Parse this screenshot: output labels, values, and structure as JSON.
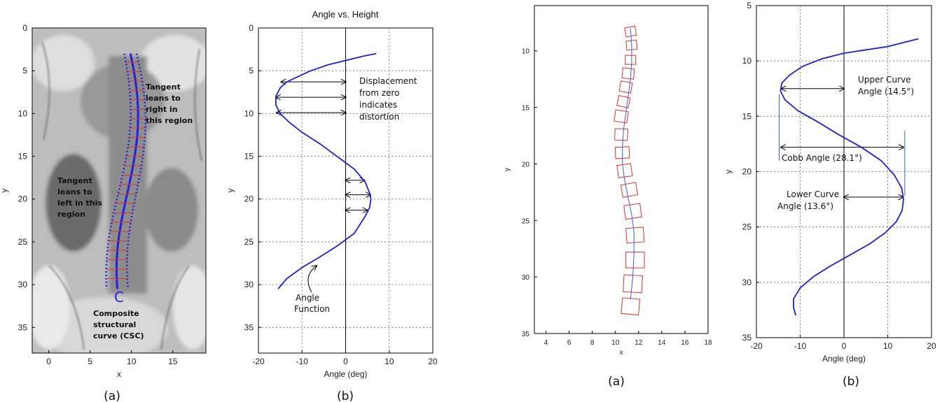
{
  "colors": {
    "curve": "#1f1fd6",
    "boxes": "#e03030",
    "spine_line": "#3a5fd9",
    "axis": "#000000"
  },
  "chart_data": [
    {
      "id": "panel-1a",
      "type": "image",
      "caption": "(a)",
      "xlabel": "x",
      "ylabel": "y",
      "xlim": [
        -2,
        19
      ],
      "ylim": [
        38,
        0
      ],
      "xticks": [
        "0",
        "5",
        "10",
        "15"
      ],
      "yticks": [
        "0",
        "5",
        "10",
        "15",
        "20",
        "25",
        "30",
        "35"
      ],
      "annotations": {
        "right": [
          "Tangent",
          "leans to",
          "right in",
          "this region"
        ],
        "left": [
          "Tangent",
          "leans to",
          "left in this",
          "region"
        ],
        "bottom": [
          "Composite",
          "structural",
          "curve (CSC)"
        ],
        "letter": "C"
      }
    },
    {
      "id": "panel-1b",
      "type": "line",
      "title": "Angle vs. Height",
      "caption": "(b)",
      "xlabel": "Angle (deg)",
      "ylabel": "y",
      "xlim": [
        -20,
        20
      ],
      "ylim": [
        38,
        0
      ],
      "xticks": [
        "-20",
        "-10",
        "0",
        "10",
        "20"
      ],
      "yticks": [
        "0",
        "5",
        "10",
        "15",
        "20",
        "25",
        "30",
        "35"
      ],
      "grid": true,
      "series": [
        {
          "x": [
            7,
            4,
            0,
            -4,
            -8,
            -11,
            -13.5,
            -15,
            -16,
            -16,
            -15,
            -13,
            -10,
            -6,
            -2,
            2,
            4.5,
            5.5,
            5.8,
            5.5,
            4.5,
            2,
            -2,
            -6,
            -10,
            -13.5,
            -15.5
          ],
          "y": [
            3,
            3.3,
            3.8,
            4.3,
            5,
            5.7,
            6.3,
            7,
            8,
            9,
            10,
            11,
            12.2,
            13.5,
            15,
            16.5,
            18,
            19.3,
            20,
            21,
            22,
            24,
            25.5,
            26.8,
            28,
            29.3,
            30.5
          ]
        }
      ],
      "annotations": {
        "displacement": [
          "Displacement",
          "from zero",
          "indicates",
          "distortion"
        ],
        "function": [
          "Angle",
          "Function"
        ]
      }
    },
    {
      "id": "panel-2a",
      "type": "scatter",
      "caption": "(a)",
      "xlabel": "x",
      "ylabel": "y",
      "xlim": [
        3,
        18
      ],
      "ylim": [
        35,
        6
      ],
      "xticks": [
        "4",
        "6",
        "8",
        "10",
        "12",
        "14",
        "16",
        "18"
      ],
      "yticks": [
        "10",
        "15",
        "20",
        "25",
        "30",
        "35"
      ],
      "centerline": {
        "x": [
          11.3,
          11.4,
          11.4,
          11.3,
          11.1,
          10.9,
          10.7,
          10.6,
          10.6,
          10.8,
          11.1,
          11.4,
          11.6,
          11.6,
          11.5,
          11.3
        ],
        "y": [
          8,
          9.5,
          11,
          12.5,
          14,
          15.5,
          17,
          18.5,
          20,
          21.5,
          23,
          24.5,
          26,
          28,
          30,
          32
        ]
      },
      "boxes": [
        {
          "x": 11.3,
          "y": 8.3,
          "w": 0.9,
          "h": 0.8,
          "angle": -10
        },
        {
          "x": 11.4,
          "y": 9.5,
          "w": 0.9,
          "h": 0.8,
          "angle": -6
        },
        {
          "x": 11.3,
          "y": 10.8,
          "w": 0.9,
          "h": 0.8,
          "angle": 0
        },
        {
          "x": 11.1,
          "y": 12.0,
          "w": 1.0,
          "h": 0.9,
          "angle": 6
        },
        {
          "x": 10.9,
          "y": 13.2,
          "w": 1.0,
          "h": 0.9,
          "angle": 10
        },
        {
          "x": 10.7,
          "y": 14.5,
          "w": 1.0,
          "h": 0.9,
          "angle": 12
        },
        {
          "x": 10.5,
          "y": 15.8,
          "w": 1.1,
          "h": 1.0,
          "angle": 8
        },
        {
          "x": 10.5,
          "y": 17.4,
          "w": 1.1,
          "h": 1.0,
          "angle": 2
        },
        {
          "x": 10.6,
          "y": 19.0,
          "w": 1.2,
          "h": 1.0,
          "angle": -3
        },
        {
          "x": 10.8,
          "y": 20.6,
          "w": 1.2,
          "h": 1.1,
          "angle": -8
        },
        {
          "x": 11.2,
          "y": 22.3,
          "w": 1.3,
          "h": 1.1,
          "angle": -10
        },
        {
          "x": 11.5,
          "y": 24.2,
          "w": 1.4,
          "h": 1.2,
          "angle": -8
        },
        {
          "x": 11.7,
          "y": 26.3,
          "w": 1.5,
          "h": 1.3,
          "angle": -4
        },
        {
          "x": 11.7,
          "y": 28.5,
          "w": 1.6,
          "h": 1.4,
          "angle": 0
        },
        {
          "x": 11.5,
          "y": 30.6,
          "w": 1.6,
          "h": 1.5,
          "angle": 3
        },
        {
          "x": 11.3,
          "y": 32.6,
          "w": 1.5,
          "h": 1.4,
          "angle": 5
        }
      ]
    },
    {
      "id": "panel-2b",
      "type": "line",
      "caption": "(b)",
      "xlabel": "Angle (deg)",
      "ylabel": "y",
      "xlim": [
        -20,
        20
      ],
      "ylim": [
        35,
        5
      ],
      "xticks": [
        "-20",
        "-10",
        "0",
        "10",
        "20"
      ],
      "yticks": [
        "5",
        "10",
        "15",
        "20",
        "25",
        "30",
        "35"
      ],
      "grid": true,
      "series": [
        {
          "x": [
            17,
            14,
            10,
            5,
            0,
            -5,
            -9.5,
            -12.5,
            -14.2,
            -14.5,
            -13.5,
            -10.5,
            -6,
            -1,
            4,
            8.5,
            11.5,
            13.2,
            13.6,
            13.3,
            12,
            9.5,
            6,
            1.5,
            -3,
            -7,
            -10,
            -11.5,
            -11.5,
            -11
          ],
          "y": [
            8,
            8.3,
            8.7,
            9,
            9.3,
            9.8,
            10.5,
            11.3,
            12,
            12.7,
            13.5,
            14.5,
            15.5,
            16.7,
            17.8,
            19,
            20.3,
            21.5,
            22.5,
            23.5,
            24.5,
            25.5,
            26.5,
            27.5,
            28.5,
            29.5,
            30.5,
            31.5,
            32.3,
            33
          ]
        }
      ],
      "annotations": {
        "upper": [
          "Upper Curve",
          "Angle (14.5°)"
        ],
        "cobb": "Cobb Angle (28.1°)",
        "lower": [
          "Lower Curve",
          "Angle (13.6°)"
        ]
      }
    }
  ]
}
